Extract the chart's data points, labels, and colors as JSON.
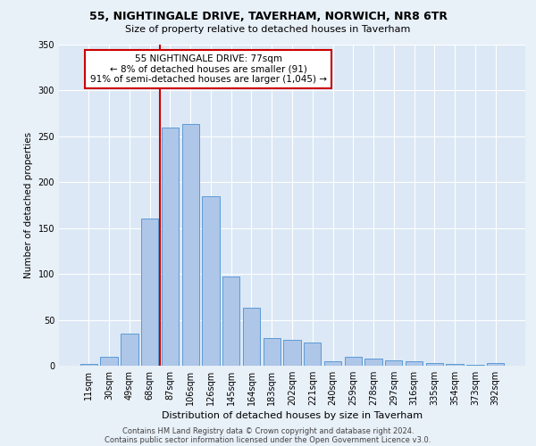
{
  "title1": "55, NIGHTINGALE DRIVE, TAVERHAM, NORWICH, NR8 6TR",
  "title2": "Size of property relative to detached houses in Taverham",
  "xlabel": "Distribution of detached houses by size in Taverham",
  "ylabel": "Number of detached properties",
  "footnote1": "Contains HM Land Registry data © Crown copyright and database right 2024.",
  "footnote2": "Contains public sector information licensed under the Open Government Licence v3.0.",
  "categories": [
    "11sqm",
    "30sqm",
    "49sqm",
    "68sqm",
    "87sqm",
    "106sqm",
    "126sqm",
    "145sqm",
    "164sqm",
    "183sqm",
    "202sqm",
    "221sqm",
    "240sqm",
    "259sqm",
    "278sqm",
    "297sqm",
    "316sqm",
    "335sqm",
    "354sqm",
    "373sqm",
    "392sqm"
  ],
  "values": [
    2,
    10,
    35,
    160,
    260,
    263,
    185,
    97,
    63,
    30,
    28,
    25,
    5,
    10,
    8,
    6,
    5,
    3,
    2,
    1,
    3
  ],
  "bar_color": "#aec6e8",
  "bar_edge_color": "#5b9bd5",
  "bar_width": 0.85,
  "property_line_x": 3.5,
  "annotation_line1": "55 NIGHTINGALE DRIVE: 77sqm",
  "annotation_line2": "← 8% of detached houses are smaller (91)",
  "annotation_line3": "91% of semi-detached houses are larger (1,045) →",
  "annotation_box_color": "#ffffff",
  "annotation_box_edge": "#cc0000",
  "vline_color": "#cc0000",
  "bg_color": "#e8f0f8",
  "plot_bg_color": "#dce8f5",
  "grid_color": "#ffffff",
  "ylim": [
    0,
    350
  ],
  "yticks": [
    0,
    50,
    100,
    150,
    200,
    250,
    300,
    350
  ]
}
